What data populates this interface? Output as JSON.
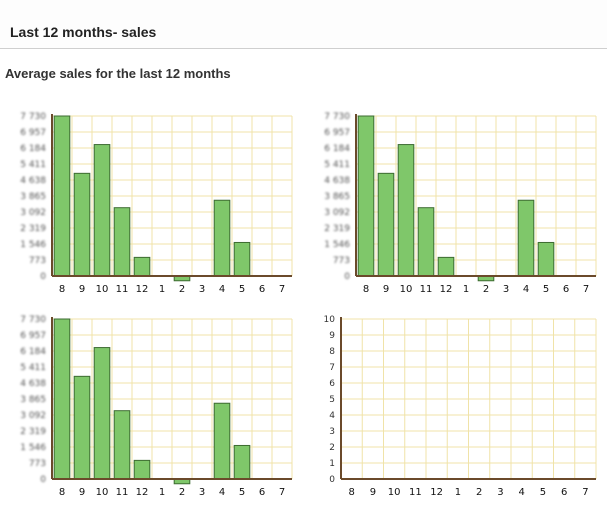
{
  "header": {
    "title": "Last 12 months- sales"
  },
  "subtitle": "Average sales for the last 12 months",
  "colors": {
    "bar": "#7fc76a",
    "bar_border": "#3d6b31",
    "grid": "#f0e3a8",
    "axis": "#6b4a2b"
  },
  "chart_data": [
    {
      "type": "bar",
      "categories": [
        "8",
        "9",
        "10",
        "11",
        "12",
        "1",
        "2",
        "3",
        "4",
        "5",
        "6",
        "7"
      ],
      "values": [
        7730,
        4960,
        6350,
        3300,
        900,
        0,
        -230,
        0,
        3660,
        1620,
        0,
        0
      ],
      "yticks": [
        "0",
        "773",
        "1 546",
        "2 319",
        "3 092",
        "3 865",
        "4 638",
        "5 411",
        "6 184",
        "6 957",
        "7 730"
      ],
      "ylim": [
        -300,
        7730
      ],
      "yticks_blurred": true,
      "grid": true
    },
    {
      "type": "bar",
      "categories": [
        "8",
        "9",
        "10",
        "11",
        "12",
        "1",
        "2",
        "3",
        "4",
        "5",
        "6",
        "7"
      ],
      "values": [
        7730,
        4960,
        6350,
        3300,
        900,
        0,
        -230,
        0,
        3660,
        1620,
        0,
        0
      ],
      "yticks": [
        "0",
        "773",
        "1 546",
        "2 319",
        "3 092",
        "3 865",
        "4 638",
        "5 411",
        "6 184",
        "6 957",
        "7 730"
      ],
      "ylim": [
        -300,
        7730
      ],
      "yticks_blurred": true,
      "grid": true
    },
    {
      "type": "bar",
      "categories": [
        "8",
        "9",
        "10",
        "11",
        "12",
        "1",
        "2",
        "3",
        "4",
        "5",
        "6",
        "7"
      ],
      "values": [
        7730,
        4960,
        6350,
        3300,
        900,
        0,
        -230,
        0,
        3660,
        1620,
        0,
        0
      ],
      "yticks": [
        "0",
        "773",
        "1 546",
        "2 319",
        "3 092",
        "3 865",
        "4 638",
        "5 411",
        "6 184",
        "6 957",
        "7 730"
      ],
      "ylim": [
        -300,
        7730
      ],
      "yticks_blurred": true,
      "grid": true
    },
    {
      "type": "bar",
      "categories": [
        "8",
        "9",
        "10",
        "11",
        "12",
        "1",
        "2",
        "3",
        "4",
        "5",
        "6",
        "7"
      ],
      "values": [
        0,
        0,
        0,
        0,
        0,
        0,
        0,
        0,
        0,
        0,
        0,
        0
      ],
      "yticks": [
        "0",
        "1",
        "2",
        "3",
        "4",
        "5",
        "6",
        "7",
        "8",
        "9",
        "10"
      ],
      "ylim": [
        0,
        10
      ],
      "yticks_blurred": false,
      "grid": true
    }
  ]
}
